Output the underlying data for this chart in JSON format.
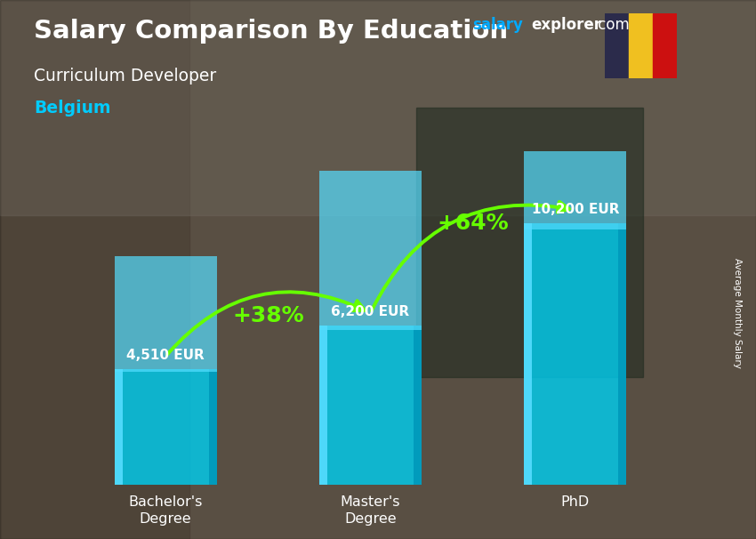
{
  "title_salary": "Salary Comparison By Education",
  "subtitle": "Curriculum Developer",
  "country": "Belgium",
  "categories": [
    "Bachelor's\nDegree",
    "Master's\nDegree",
    "PhD"
  ],
  "values": [
    4510,
    6200,
    10200
  ],
  "value_labels": [
    "4,510 EUR",
    "6,200 EUR",
    "10,200 EUR"
  ],
  "pct_labels": [
    "+38%",
    "+64%"
  ],
  "bar_color_main": "#00ccee",
  "bar_color_light": "#55ddff",
  "bar_color_dark": "#0099bb",
  "bar_alpha": 0.82,
  "title_color": "#ffffff",
  "subtitle_color": "#ffffff",
  "country_color": "#00ccff",
  "watermark_salary_color": "#00aaff",
  "watermark_rest_color": "#ffffff",
  "arrow_color": "#66ff00",
  "pct_color": "#66ff00",
  "value_label_color": "#ffffff",
  "axis_label": "Average Monthly Salary",
  "flag_black": "#2b2b4b",
  "flag_yellow": "#f0c020",
  "flag_red": "#cc1010",
  "ylim": [
    0,
    13000
  ],
  "bar_width": 0.5,
  "bg_color": "#7a6a55"
}
